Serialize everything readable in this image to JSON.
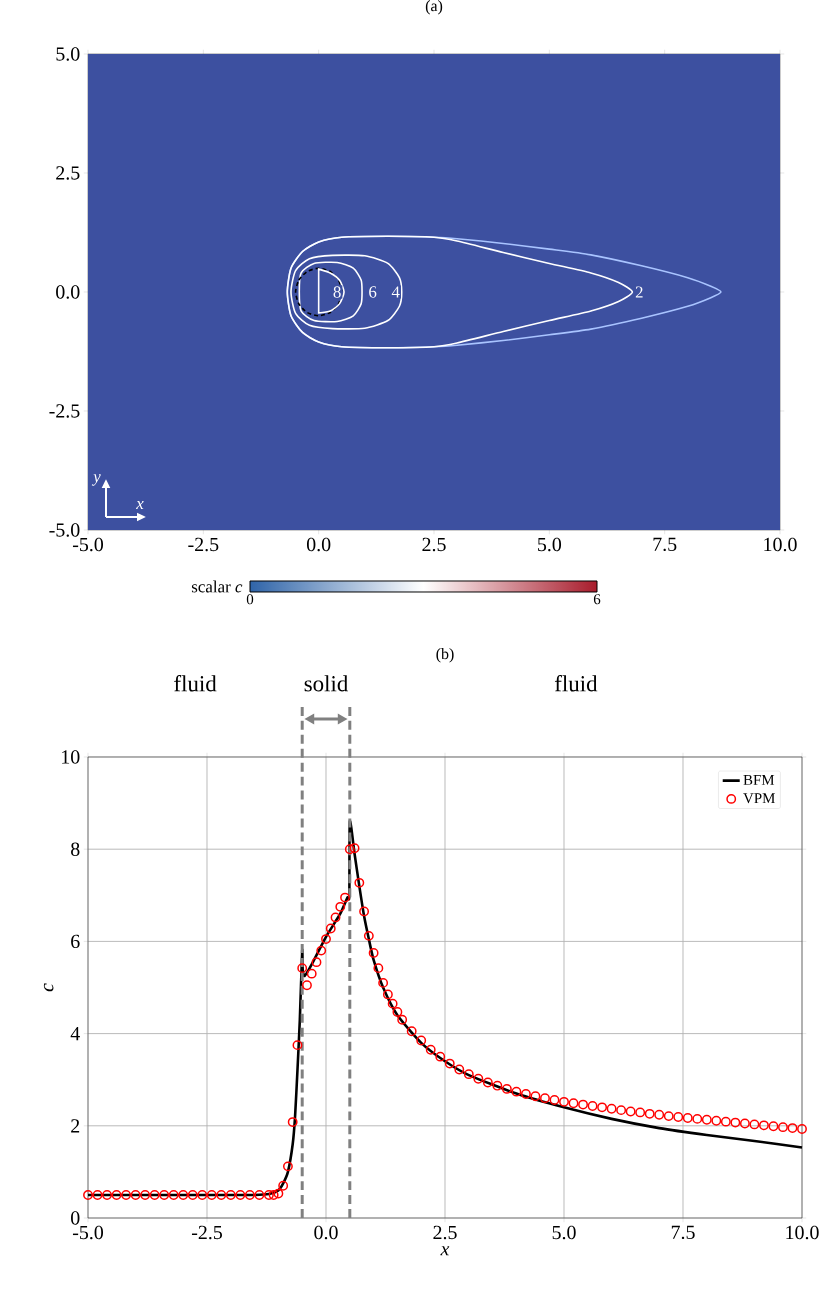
{
  "chart_data": [
    {
      "type": "line",
      "title": "(a)",
      "clabel": "scalar *c*",
      "clim": [
        0,
        6
      ],
      "cticks": [
        0,
        6
      ],
      "xlim": [
        -5,
        10
      ],
      "ylim": [
        -5,
        5
      ],
      "xticks": [
        {
          "value": -5,
          "label": "-5.0"
        },
        {
          "value": -2.5,
          "label": "-2.5"
        },
        {
          "value": 0,
          "label": "0.0"
        },
        {
          "value": 2.5,
          "label": "2.5"
        },
        {
          "value": 5,
          "label": "5.0"
        },
        {
          "value": 7.5,
          "label": "7.5"
        },
        {
          "value": 10,
          "label": "10.0"
        }
      ],
      "yticks": [
        {
          "value": -5,
          "label": "-5.0"
        },
        {
          "value": -2.5,
          "label": "-2.5"
        },
        {
          "value": 0,
          "label": "0.0"
        },
        {
          "value": 2.5,
          "label": "2.5"
        },
        {
          "value": 5,
          "label": "5.0"
        }
      ],
      "annotations": [
        {
          "text": "2",
          "x": 6.95,
          "y": 0
        },
        {
          "text": "4",
          "x": 1.67,
          "y": 0
        },
        {
          "text": "6",
          "x": 1.17,
          "y": 0
        },
        {
          "text": "8",
          "x": 0.4,
          "y": 0
        },
        "y",
        "x"
      ]
    },
    {
      "type": "line",
      "title": "(b)",
      "xlabel": "x",
      "ylabel": "c",
      "grid": true,
      "legend": "top right",
      "xlim": [
        -5,
        10
      ],
      "ylim": [
        0,
        10
      ],
      "xticks": [
        {
          "value": -5,
          "label": "-5.0"
        },
        {
          "value": -2.5,
          "label": "-2.5"
        },
        {
          "value": 0,
          "label": "0.0"
        },
        {
          "value": 2.5,
          "label": "2.5"
        },
        {
          "value": 5,
          "label": "5.0"
        },
        {
          "value": 7.5,
          "label": "7.5"
        },
        {
          "value": 10,
          "label": "10.0"
        }
      ],
      "yticks": [
        0,
        2,
        4,
        6,
        8,
        10
      ],
      "ref_lines": [
        {
          "axis": "x",
          "value": -0.5,
          "color": "#808080",
          "line_style": "dashed"
        },
        {
          "axis": "x",
          "value": 0.5,
          "color": "#808080",
          "line_style": "dashed"
        }
      ],
      "annotations": [
        "fluid",
        "solid",
        "fluid"
      ],
      "series": [
        {
          "name": "BFM",
          "type": "line",
          "color": "#000000",
          "x": [
            -5,
            -4,
            -3,
            -2,
            -1.5,
            -1.2,
            -1.0,
            -0.9,
            -0.8,
            -0.7,
            -0.65,
            -0.6,
            -0.55,
            -0.5,
            -0.49,
            -0.45,
            -0.3,
            0,
            0.3,
            0.45,
            0.49,
            0.5,
            0.6,
            0.7,
            0.8,
            0.9,
            1.0,
            1.2,
            1.5,
            2.0,
            2.5,
            3,
            4,
            5,
            6,
            7,
            8,
            9,
            10
          ],
          "values": [
            0.5,
            0.5,
            0.5,
            0.5,
            0.5,
            0.52,
            0.6,
            0.75,
            1.0,
            1.6,
            2.2,
            3.2,
            4.3,
            5.8,
            5.4,
            5.25,
            5.5,
            6.1,
            6.6,
            6.95,
            7.0,
            8.6,
            7.9,
            7.2,
            6.55,
            6.05,
            5.6,
            5.0,
            4.4,
            3.8,
            3.4,
            3.1,
            2.7,
            2.4,
            2.15,
            1.95,
            1.8,
            1.67,
            1.53
          ]
        },
        {
          "name": "VPM",
          "type": "scatter",
          "marker": "circle",
          "color": "#ff0000",
          "x": [
            -5,
            -4.8,
            -4.6,
            -4.4,
            -4.2,
            -4,
            -3.8,
            -3.6,
            -3.4,
            -3.2,
            -3,
            -2.8,
            -2.6,
            -2.4,
            -2.2,
            -2,
            -1.8,
            -1.6,
            -1.4,
            -1.2,
            -1.1,
            -1.0,
            -0.9,
            -0.8,
            -0.7,
            -0.6,
            -0.5,
            -0.4,
            -0.3,
            -0.2,
            -0.1,
            0,
            0.1,
            0.2,
            0.3,
            0.4,
            0.5,
            0.6,
            0.7,
            0.8,
            0.9,
            1.0,
            1.1,
            1.2,
            1.3,
            1.4,
            1.5,
            1.6,
            1.8,
            2.0,
            2.2,
            2.4,
            2.6,
            2.8,
            3.0,
            3.2,
            3.4,
            3.6,
            3.8,
            4.0,
            4.2,
            4.4,
            4.6,
            4.8,
            5.0,
            5.2,
            5.4,
            5.6,
            5.8,
            6.0,
            6.2,
            6.4,
            6.6,
            6.8,
            7.0,
            7.2,
            7.4,
            7.6,
            7.8,
            8.0,
            8.2,
            8.4,
            8.6,
            8.8,
            9.0,
            9.2,
            9.4,
            9.6,
            9.8,
            10.0
          ],
          "values": [
            0.5,
            0.5,
            0.5,
            0.5,
            0.5,
            0.5,
            0.5,
            0.5,
            0.5,
            0.5,
            0.5,
            0.5,
            0.5,
            0.5,
            0.5,
            0.5,
            0.5,
            0.5,
            0.5,
            0.5,
            0.5,
            0.53,
            0.7,
            1.12,
            2.08,
            3.75,
            5.42,
            5.05,
            5.3,
            5.55,
            5.8,
            6.05,
            6.28,
            6.52,
            6.75,
            6.95,
            8.0,
            8.02,
            7.27,
            6.65,
            6.12,
            5.75,
            5.42,
            5.1,
            4.85,
            4.65,
            4.47,
            4.3,
            4.05,
            3.85,
            3.65,
            3.5,
            3.35,
            3.22,
            3.12,
            3.02,
            2.94,
            2.87,
            2.8,
            2.74,
            2.69,
            2.64,
            2.6,
            2.56,
            2.52,
            2.49,
            2.46,
            2.43,
            2.4,
            2.37,
            2.34,
            2.31,
            2.29,
            2.26,
            2.24,
            2.21,
            2.19,
            2.17,
            2.15,
            2.13,
            2.11,
            2.09,
            2.07,
            2.05,
            2.03,
            2.01,
            1.99,
            1.97,
            1.95,
            1.93
          ]
        }
      ]
    }
  ]
}
